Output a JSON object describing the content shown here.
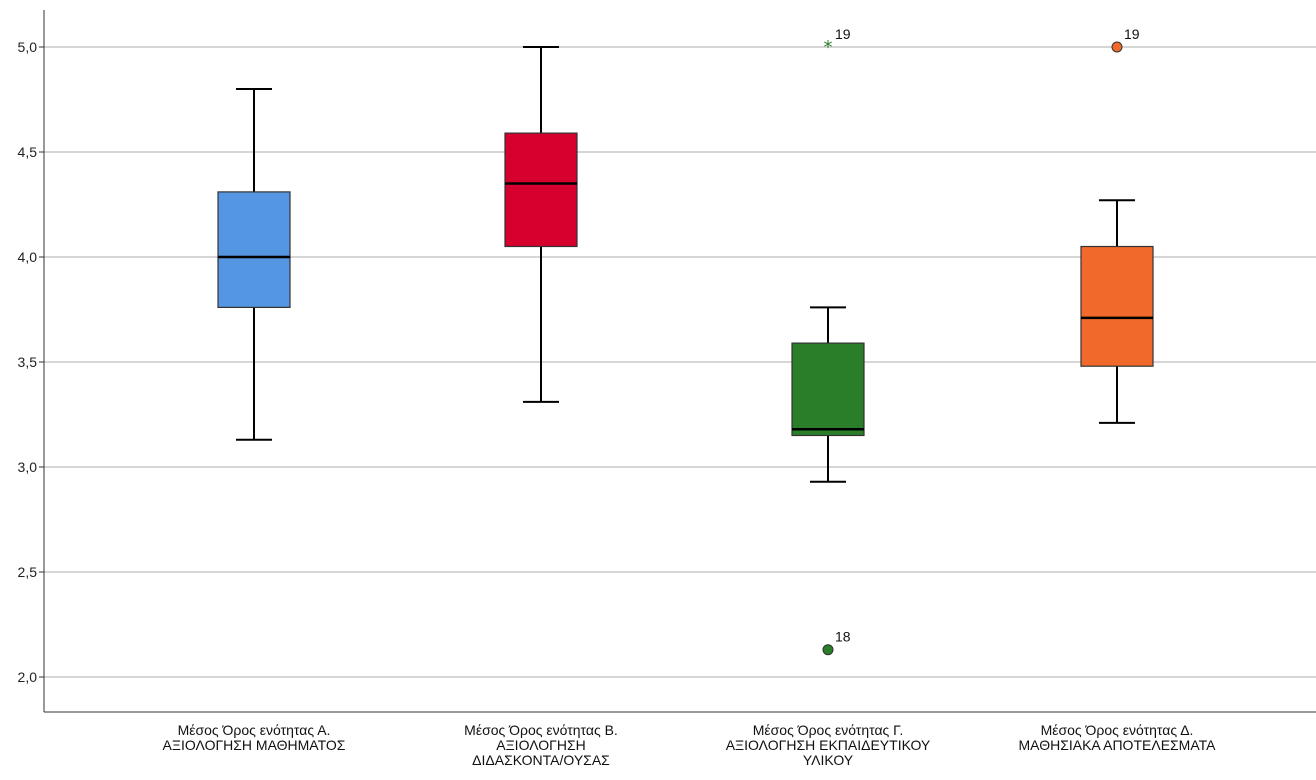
{
  "chart_data": {
    "type": "boxplot",
    "ylim": [
      1.85,
      5.35
    ],
    "yticks": [
      2.0,
      2.5,
      3.0,
      3.5,
      4.0,
      4.5,
      5.0
    ],
    "ytick_labels": [
      "2,0",
      "2,5",
      "3,0",
      "3,5",
      "4,0",
      "4,5",
      "5,0"
    ],
    "grid": true,
    "categories": [
      {
        "label_lines": [
          "Μέσος Όρος ενότητας Α.",
          "ΑΞΙΟΛΟΓΗΣΗ ΜΑΘΗΜΑΤΟΣ"
        ],
        "color": "#5496E1",
        "whisker_low": 3.13,
        "q1": 3.76,
        "median": 4.0,
        "q3": 4.31,
        "whisker_high": 4.8,
        "outliers": []
      },
      {
        "label_lines": [
          "Μέσος Όρος ενότητας Β.",
          "ΑΞΙΟΛΟΓΗΣΗ",
          "ΔΙΔΑΣΚΟΝΤΑ/ΟΥΣΑΣ"
        ],
        "color": "#D6002F",
        "whisker_low": 3.31,
        "q1": 4.05,
        "median": 4.35,
        "q3": 4.59,
        "whisker_high": 5.0,
        "outliers": []
      },
      {
        "label_lines": [
          "Μέσος Όρος ενότητας Γ.",
          "ΑΞΙΟΛΟΓΗΣΗ ΕΚΠΑΙΔΕΥΤΙΚΟΥ",
          "ΥΛΙΚΟΥ"
        ],
        "color": "#2A7E2A",
        "whisker_low": 2.93,
        "q1": 3.15,
        "median": 3.18,
        "q3": 3.59,
        "whisker_high": 3.76,
        "outliers": [
          {
            "value": 5.0,
            "label": "19",
            "marker": "star"
          },
          {
            "value": 2.13,
            "label": "18",
            "marker": "circle"
          }
        ]
      },
      {
        "label_lines": [
          "Μέσος Όρος ενότητας Δ.",
          "ΜΑΘΗΣΙΑΚΑ ΑΠΟΤΕΛΕΣΜΑΤΑ"
        ],
        "color": "#F26A2B",
        "whisker_low": 3.21,
        "q1": 3.48,
        "median": 3.71,
        "q3": 4.05,
        "whisker_high": 4.27,
        "outliers": [
          {
            "value": 5.0,
            "label": "19",
            "marker": "circle"
          }
        ]
      }
    ]
  }
}
